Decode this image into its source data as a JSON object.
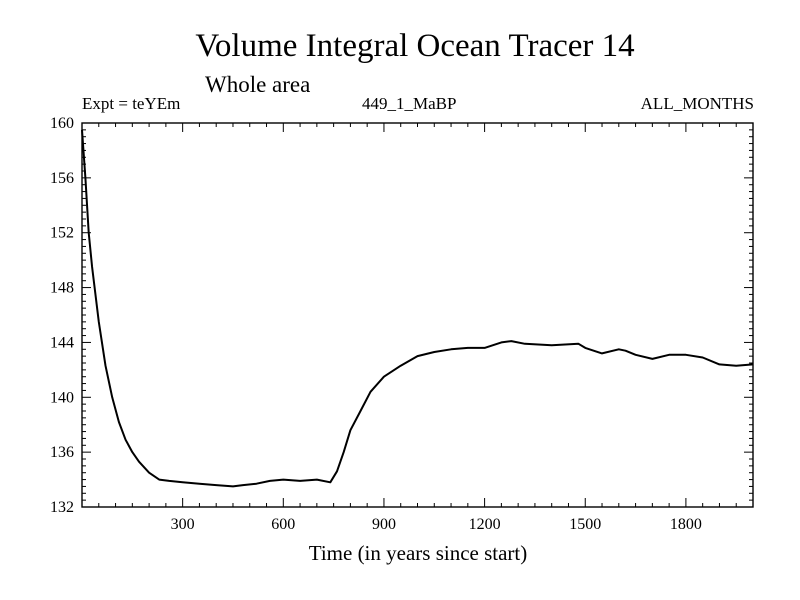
{
  "chart_data": {
    "type": "line",
    "title": "Volume Integral Ocean Tracer 14",
    "subtitle": "Whole area",
    "annotations": {
      "left": "Expt = teYEm",
      "center": "449_1_MaBP",
      "right": "ALL_MONTHS"
    },
    "xlabel": "Time (in years since start)",
    "ylabel": "",
    "xlim": [
      0,
      2000
    ],
    "ylim": [
      132,
      160
    ],
    "xticks": [
      300,
      600,
      900,
      1200,
      1500,
      1800
    ],
    "xtick_labels": [
      "300",
      "600",
      "900",
      "1200",
      "1500",
      "1800"
    ],
    "yticks": [
      132,
      136,
      140,
      144,
      148,
      152,
      156,
      160
    ],
    "ytick_labels": [
      "132",
      "136",
      "140",
      "144",
      "148",
      "152",
      "156",
      "160"
    ],
    "grid": false,
    "series": [
      {
        "name": "Volume Integral Ocean Tracer 14",
        "color": "#000000",
        "x": [
          0,
          10,
          20,
          30,
          50,
          70,
          90,
          110,
          130,
          150,
          170,
          200,
          230,
          260,
          300,
          350,
          400,
          450,
          480,
          520,
          560,
          600,
          650,
          700,
          740,
          760,
          780,
          800,
          830,
          860,
          900,
          950,
          1000,
          1050,
          1100,
          1150,
          1200,
          1250,
          1280,
          1320,
          1400,
          1480,
          1500,
          1550,
          1600,
          1620,
          1650,
          1700,
          1750,
          1800,
          1850,
          1900,
          1950,
          2000
        ],
        "y": [
          159.5,
          156.0,
          152.0,
          149.5,
          145.5,
          142.3,
          140.0,
          138.2,
          136.9,
          136.0,
          135.3,
          134.5,
          134.0,
          133.9,
          133.8,
          133.7,
          133.6,
          133.5,
          133.6,
          133.7,
          133.9,
          134.0,
          133.9,
          134.0,
          133.8,
          134.6,
          136.0,
          137.6,
          139.0,
          140.4,
          141.5,
          142.3,
          143.0,
          143.3,
          143.5,
          143.6,
          143.6,
          144.0,
          144.1,
          143.9,
          143.8,
          143.9,
          143.6,
          143.2,
          143.5,
          143.4,
          143.1,
          142.8,
          143.1,
          143.1,
          142.9,
          142.4,
          142.3,
          142.4
        ]
      }
    ]
  }
}
